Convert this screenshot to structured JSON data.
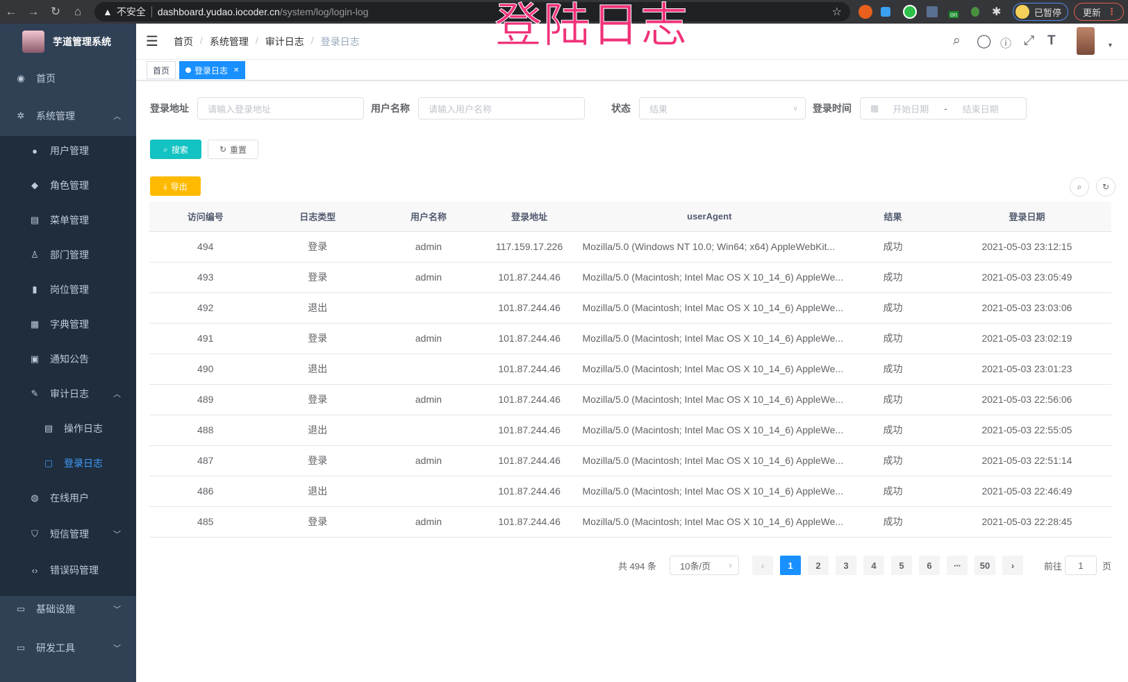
{
  "browser": {
    "security": "不安全",
    "host": "dashboard.yudao.iocoder.cn",
    "path": "/system/log/login-log",
    "profile_label": "已暂停",
    "update_label": "更新",
    "extension_badge": "on"
  },
  "overlay_title": "登陆日志",
  "sidebar": {
    "app_name": "芋道管理系统",
    "items": [
      {
        "label": "首页",
        "icon": "dashboard-icon"
      },
      {
        "label": "系统管理",
        "icon": "gear-icon",
        "expanded": true
      },
      {
        "label": "用户管理",
        "icon": "user-icon"
      },
      {
        "label": "角色管理",
        "icon": "peoples-icon"
      },
      {
        "label": "菜单管理",
        "icon": "tree-table-icon"
      },
      {
        "label": "部门管理",
        "icon": "tree-icon"
      },
      {
        "label": "岗位管理",
        "icon": "post-icon"
      },
      {
        "label": "字典管理",
        "icon": "dict-icon"
      },
      {
        "label": "通知公告",
        "icon": "message-icon"
      },
      {
        "label": "审计日志",
        "icon": "log-icon",
        "expanded": true
      },
      {
        "label": "操作日志",
        "icon": "form-icon"
      },
      {
        "label": "登录日志",
        "icon": "logininfor-icon",
        "active": true
      },
      {
        "label": "在线用户",
        "icon": "online-icon"
      },
      {
        "label": "短信管理",
        "icon": "validCode-icon"
      },
      {
        "label": "错误码管理",
        "icon": "code-icon"
      },
      {
        "label": "基础设施",
        "icon": "monitor-icon"
      },
      {
        "label": "研发工具",
        "icon": "tool-icon"
      }
    ]
  },
  "breadcrumb": [
    "首页",
    "系统管理",
    "审计日志",
    "登录日志"
  ],
  "tags": [
    {
      "label": "首页"
    },
    {
      "label": "登录日志",
      "active": true
    }
  ],
  "filters": {
    "address": {
      "label": "登录地址",
      "placeholder": "请输入登录地址"
    },
    "username": {
      "label": "用户名称",
      "placeholder": "请输入用户名称"
    },
    "status": {
      "label": "状态",
      "placeholder": "结果"
    },
    "time": {
      "label": "登录时间",
      "start_placeholder": "开始日期",
      "sep": "-",
      "end_placeholder": "结束日期"
    },
    "search_label": "搜索",
    "reset_label": "重置",
    "export_label": "导出"
  },
  "colors": {
    "sidebar": "#304156",
    "submenu": "#1f2d3d",
    "primary": "#1890ff",
    "search": "#13c2c2",
    "export": "#ffba00"
  },
  "table": {
    "columns": [
      "访问编号",
      "日志类型",
      "用户名称",
      "登录地址",
      "userAgent",
      "结果",
      "登录日期"
    ],
    "rows": [
      [
        "494",
        "登录",
        "admin",
        "117.159.17.226",
        "Mozilla/5.0 (Windows NT 10.0; Win64; x64) AppleWebKit...",
        "成功",
        "2021-05-03 23:12:15"
      ],
      [
        "493",
        "登录",
        "admin",
        "101.87.244.46",
        "Mozilla/5.0 (Macintosh; Intel Mac OS X 10_14_6) AppleWe...",
        "成功",
        "2021-05-03 23:05:49"
      ],
      [
        "492",
        "退出",
        "",
        "101.87.244.46",
        "Mozilla/5.0 (Macintosh; Intel Mac OS X 10_14_6) AppleWe...",
        "成功",
        "2021-05-03 23:03:06"
      ],
      [
        "491",
        "登录",
        "admin",
        "101.87.244.46",
        "Mozilla/5.0 (Macintosh; Intel Mac OS X 10_14_6) AppleWe...",
        "成功",
        "2021-05-03 23:02:19"
      ],
      [
        "490",
        "退出",
        "",
        "101.87.244.46",
        "Mozilla/5.0 (Macintosh; Intel Mac OS X 10_14_6) AppleWe...",
        "成功",
        "2021-05-03 23:01:23"
      ],
      [
        "489",
        "登录",
        "admin",
        "101.87.244.46",
        "Mozilla/5.0 (Macintosh; Intel Mac OS X 10_14_6) AppleWe...",
        "成功",
        "2021-05-03 22:56:06"
      ],
      [
        "488",
        "退出",
        "",
        "101.87.244.46",
        "Mozilla/5.0 (Macintosh; Intel Mac OS X 10_14_6) AppleWe...",
        "成功",
        "2021-05-03 22:55:05"
      ],
      [
        "487",
        "登录",
        "admin",
        "101.87.244.46",
        "Mozilla/5.0 (Macintosh; Intel Mac OS X 10_14_6) AppleWe...",
        "成功",
        "2021-05-03 22:51:14"
      ],
      [
        "486",
        "退出",
        "",
        "101.87.244.46",
        "Mozilla/5.0 (Macintosh; Intel Mac OS X 10_14_6) AppleWe...",
        "成功",
        "2021-05-03 22:46:49"
      ],
      [
        "485",
        "登录",
        "admin",
        "101.87.244.46",
        "Mozilla/5.0 (Macintosh; Intel Mac OS X 10_14_6) AppleWe...",
        "成功",
        "2021-05-03 22:28:45"
      ]
    ]
  },
  "pagination": {
    "total_text": "共 494 条",
    "page_size": "10条/页",
    "pages": [
      "1",
      "2",
      "3",
      "4",
      "5",
      "6",
      "···",
      "50"
    ],
    "current": "1",
    "goto_label": "前往",
    "goto_value": "1",
    "goto_suffix": "页"
  }
}
